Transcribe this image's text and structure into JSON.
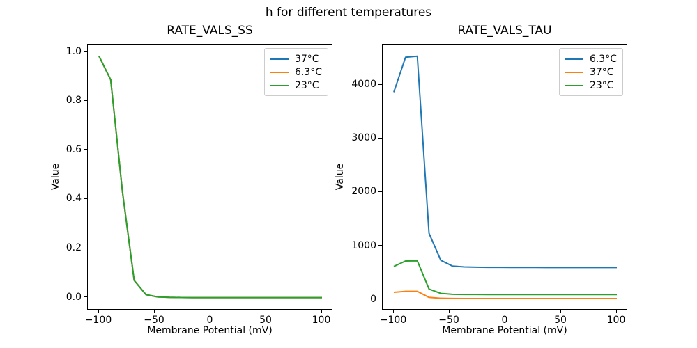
{
  "figure": {
    "suptitle": "h for different temperatures",
    "background": "#ffffff"
  },
  "palette": {
    "blue": "#1f77b4",
    "orange": "#ff7f0e",
    "green": "#2ca02c"
  },
  "chart_data": [
    {
      "type": "line",
      "title": "RATE_VALS_SS",
      "xlabel": "Membrane Potential (mV)",
      "ylabel": "Value",
      "xlim": [
        -110,
        110
      ],
      "ylim": [
        -0.052,
        1.03
      ],
      "grid": false,
      "legend_position": "upper right",
      "xticks": [
        -100,
        -50,
        0,
        50,
        100
      ],
      "xtick_labels": [
        "−100",
        "−50",
        "0",
        "50",
        "100"
      ],
      "yticks": [
        0.0,
        0.2,
        0.4,
        0.6,
        0.8,
        1.0
      ],
      "ytick_labels": [
        "0.0",
        "0.2",
        "0.4",
        "0.6",
        "0.8",
        "1.0"
      ],
      "x": [
        -100,
        -89.47,
        -78.95,
        -68.42,
        -57.89,
        -47.37,
        -36.84,
        -26.32,
        -15.79,
        -5.26,
        5.26,
        15.79,
        26.32,
        36.84,
        47.37,
        57.89,
        68.42,
        78.95,
        89.47,
        100
      ],
      "series": [
        {
          "name": "37°C",
          "color": "#1f77b4",
          "values": [
            0.983,
            0.887,
            0.43,
            0.07,
            0.012,
            0.003,
            0.001,
            0.0005,
            0.0002,
            0.0001,
            0,
            0,
            0,
            0,
            0,
            0,
            0,
            0,
            0,
            0
          ]
        },
        {
          "name": "6.3°C",
          "color": "#ff7f0e",
          "values": [
            0.983,
            0.887,
            0.43,
            0.07,
            0.012,
            0.003,
            0.001,
            0.0005,
            0.0002,
            0.0001,
            0,
            0,
            0,
            0,
            0,
            0,
            0,
            0,
            0,
            0
          ]
        },
        {
          "name": "23°C",
          "color": "#2ca02c",
          "values": [
            0.983,
            0.887,
            0.43,
            0.07,
            0.012,
            0.003,
            0.001,
            0.0005,
            0.0002,
            0.0001,
            0,
            0,
            0,
            0,
            0,
            0,
            0,
            0,
            0,
            0
          ]
        }
      ]
    },
    {
      "type": "line",
      "title": "RATE_VALS_TAU",
      "xlabel": "Membrane Potential (mV)",
      "ylabel": "Value",
      "xlim": [
        -110,
        110
      ],
      "ylim": [
        -200,
        4758
      ],
      "grid": false,
      "legend_position": "upper right",
      "xticks": [
        -100,
        -50,
        0,
        50,
        100
      ],
      "xtick_labels": [
        "−100",
        "−50",
        "0",
        "50",
        "100"
      ],
      "yticks": [
        0,
        1000,
        2000,
        3000,
        4000
      ],
      "ytick_labels": [
        "0",
        "1000",
        "2000",
        "3000",
        "4000"
      ],
      "x": [
        -100,
        -89.47,
        -78.95,
        -68.42,
        -57.89,
        -47.37,
        -36.84,
        -26.32,
        -15.79,
        -5.26,
        5.26,
        15.79,
        26.32,
        36.84,
        47.37,
        57.89,
        68.42,
        78.95,
        89.47,
        100
      ],
      "series": [
        {
          "name": "6.3°C",
          "color": "#1f77b4",
          "values": [
            3870,
            4520,
            4540,
            1240,
            735,
            627,
            611,
            606,
            604,
            603,
            602,
            601,
            601,
            600,
            600,
            600,
            600,
            600,
            600,
            600
          ]
        },
        {
          "name": "37°C",
          "color": "#ff7f0e",
          "values": [
            138,
            155,
            156,
            43,
            25.5,
            22,
            21.2,
            21,
            20.9,
            20.8,
            20.8,
            20.7,
            20.7,
            20.7,
            20.7,
            20.7,
            20.7,
            20.7,
            20.7,
            20.7
          ]
        },
        {
          "name": "23°C",
          "color": "#2ca02c",
          "values": [
            620,
            722,
            725,
            198,
            117,
            100,
            97.4,
            96.7,
            96.4,
            96.2,
            96.1,
            96,
            96,
            95.9,
            95.9,
            95.9,
            95.8,
            95.8,
            95.8,
            95.8
          ]
        }
      ]
    }
  ]
}
